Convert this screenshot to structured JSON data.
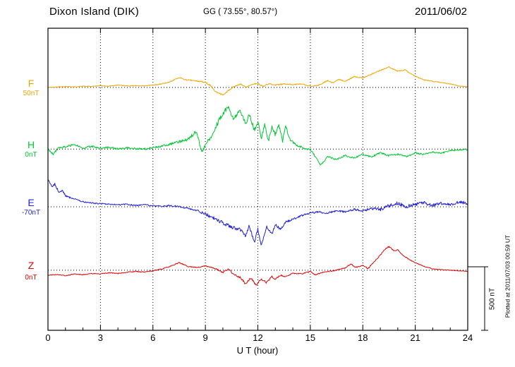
{
  "header": {
    "station": "Dixon Island (DIK)",
    "coords": "GG ( 73.55°,  80.57°)",
    "date": "2011/06/02"
  },
  "side": {
    "scalebar_label": "500 nT",
    "scalebar_nT": 500,
    "plotted_at": "Plotted at 2011/07/03 00:59 UT"
  },
  "chart_data": {
    "type": "line",
    "title": "Dixon Island (DIK) magnetogram 2011/06/02",
    "xlabel": "U T (hour)",
    "x_range": [
      0,
      24
    ],
    "x_ticks": [
      0,
      3,
      6,
      9,
      12,
      15,
      18,
      21,
      24
    ],
    "grid": "dotted vertical at 3h ticks, dotted horizontal baselines per trace",
    "legend_position": "left margin component labels",
    "scale_bar_nT": 500,
    "series": [
      {
        "name": "F",
        "color": "#f0a500",
        "baseline_label": "50nT",
        "baseline_frac": 0.196,
        "noise_profile": [
          [
            0,
            2
          ],
          [
            7,
            4
          ],
          [
            9,
            6
          ],
          [
            15,
            4
          ],
          [
            18,
            4
          ],
          [
            24,
            3
          ]
        ],
        "keypoints": [
          [
            0,
            0
          ],
          [
            0.5,
            3
          ],
          [
            1,
            6
          ],
          [
            1.5,
            4
          ],
          [
            2,
            10
          ],
          [
            2.5,
            8
          ],
          [
            3,
            14
          ],
          [
            3.5,
            10
          ],
          [
            4,
            18
          ],
          [
            4.5,
            12
          ],
          [
            5,
            14
          ],
          [
            5.5,
            12
          ],
          [
            6,
            18
          ],
          [
            6.5,
            28
          ],
          [
            7,
            45
          ],
          [
            7.5,
            78
          ],
          [
            7.8,
            62
          ],
          [
            8,
            58
          ],
          [
            8.5,
            52
          ],
          [
            9,
            40
          ],
          [
            9.3,
            15
          ],
          [
            9.6,
            -35
          ],
          [
            10,
            -60
          ],
          [
            10.3,
            -25
          ],
          [
            10.6,
            5
          ],
          [
            11,
            28
          ],
          [
            11.3,
            0
          ],
          [
            11.6,
            22
          ],
          [
            12,
            33
          ],
          [
            12.3,
            8
          ],
          [
            12.6,
            28
          ],
          [
            13,
            18
          ],
          [
            13.5,
            28
          ],
          [
            14,
            22
          ],
          [
            14.5,
            28
          ],
          [
            15,
            8
          ],
          [
            15.5,
            18
          ],
          [
            16,
            55
          ],
          [
            16.3,
            35
          ],
          [
            16.6,
            65
          ],
          [
            17,
            48
          ],
          [
            17.5,
            85
          ],
          [
            18,
            75
          ],
          [
            18.5,
            105
          ],
          [
            19,
            135
          ],
          [
            19.5,
            160
          ],
          [
            20,
            128
          ],
          [
            20.4,
            138
          ],
          [
            21,
            88
          ],
          [
            21.5,
            60
          ],
          [
            22,
            48
          ],
          [
            22.5,
            38
          ],
          [
            23,
            28
          ],
          [
            23.5,
            12
          ],
          [
            24,
            6
          ]
        ]
      },
      {
        "name": "H",
        "color": "#00c832",
        "baseline_label": "0nT",
        "baseline_frac": 0.4,
        "noise_profile": [
          [
            0,
            7
          ],
          [
            7,
            8
          ],
          [
            9,
            18
          ],
          [
            13,
            16
          ],
          [
            14.5,
            8
          ],
          [
            16,
            7
          ],
          [
            24,
            6
          ]
        ],
        "keypoints": [
          [
            0,
            0
          ],
          [
            0.3,
            -40
          ],
          [
            0.6,
            8
          ],
          [
            1,
            18
          ],
          [
            1.5,
            35
          ],
          [
            2,
            8
          ],
          [
            2.5,
            22
          ],
          [
            3,
            5
          ],
          [
            3.5,
            14
          ],
          [
            4,
            0
          ],
          [
            4.5,
            10
          ],
          [
            5,
            4
          ],
          [
            5.5,
            0
          ],
          [
            6,
            10
          ],
          [
            6.5,
            22
          ],
          [
            7,
            40
          ],
          [
            7.5,
            58
          ],
          [
            8,
            78
          ],
          [
            8.5,
            140
          ],
          [
            8.8,
            -25
          ],
          [
            9,
            28
          ],
          [
            9.3,
            90
          ],
          [
            9.6,
            180
          ],
          [
            10,
            280
          ],
          [
            10.3,
            330
          ],
          [
            10.6,
            245
          ],
          [
            11,
            300
          ],
          [
            11.3,
            195
          ],
          [
            11.5,
            275
          ],
          [
            11.8,
            145
          ],
          [
            12,
            215
          ],
          [
            12.2,
            85
          ],
          [
            12.4,
            195
          ],
          [
            12.6,
            60
          ],
          [
            12.8,
            175
          ],
          [
            13,
            115
          ],
          [
            13.2,
            195
          ],
          [
            13.4,
            60
          ],
          [
            13.6,
            185
          ],
          [
            13.8,
            80
          ],
          [
            14,
            55
          ],
          [
            14.3,
            25
          ],
          [
            14.6,
            8
          ],
          [
            15,
            -5
          ],
          [
            15.3,
            -60
          ],
          [
            15.6,
            -125
          ],
          [
            16,
            -60
          ],
          [
            16.5,
            -85
          ],
          [
            17,
            -50
          ],
          [
            17.5,
            -72
          ],
          [
            18,
            -40
          ],
          [
            18.5,
            -62
          ],
          [
            19,
            -30
          ],
          [
            19.5,
            -52
          ],
          [
            20,
            -40
          ],
          [
            20.5,
            -60
          ],
          [
            21,
            -30
          ],
          [
            21.5,
            -42
          ],
          [
            22,
            -22
          ],
          [
            22.5,
            -32
          ],
          [
            23,
            -12
          ],
          [
            23.5,
            -5
          ],
          [
            24,
            -2
          ]
        ]
      },
      {
        "name": "E",
        "color": "#2222dd",
        "baseline_label": "-70nT",
        "baseline_frac": 0.591,
        "noise_profile": [
          [
            0,
            10
          ],
          [
            2,
            5
          ],
          [
            8,
            6
          ],
          [
            10,
            16
          ],
          [
            14,
            8
          ],
          [
            18,
            8
          ],
          [
            19,
            14
          ],
          [
            24,
            12
          ]
        ],
        "keypoints": [
          [
            0,
            210
          ],
          [
            0.2,
            160
          ],
          [
            0.4,
            178
          ],
          [
            0.6,
            120
          ],
          [
            0.8,
            128
          ],
          [
            1,
            88
          ],
          [
            1.3,
            70
          ],
          [
            1.6,
            58
          ],
          [
            2,
            40
          ],
          [
            2.5,
            30
          ],
          [
            3,
            24
          ],
          [
            3.5,
            20
          ],
          [
            4,
            14
          ],
          [
            4.5,
            20
          ],
          [
            5,
            10
          ],
          [
            5.5,
            16
          ],
          [
            6,
            8
          ],
          [
            6.5,
            4
          ],
          [
            7,
            10
          ],
          [
            7.5,
            0
          ],
          [
            8,
            -12
          ],
          [
            8.5,
            -30
          ],
          [
            9,
            -58
          ],
          [
            9.5,
            -88
          ],
          [
            10,
            -128
          ],
          [
            10.5,
            -158
          ],
          [
            11,
            -178
          ],
          [
            11.3,
            -238
          ],
          [
            11.5,
            -150
          ],
          [
            11.8,
            -278
          ],
          [
            12,
            -178
          ],
          [
            12.2,
            -312
          ],
          [
            12.5,
            -158
          ],
          [
            12.8,
            -218
          ],
          [
            13,
            -140
          ],
          [
            13.3,
            -178
          ],
          [
            13.6,
            -120
          ],
          [
            14,
            -98
          ],
          [
            14.5,
            -70
          ],
          [
            15,
            -50
          ],
          [
            15.5,
            -40
          ],
          [
            16,
            -52
          ],
          [
            16.5,
            -30
          ],
          [
            17,
            -42
          ],
          [
            17.5,
            -20
          ],
          [
            18,
            -32
          ],
          [
            18.5,
            -12
          ],
          [
            19,
            -22
          ],
          [
            19.5,
            8
          ],
          [
            20,
            28
          ],
          [
            20.5,
            0
          ],
          [
            21,
            18
          ],
          [
            21.5,
            30
          ],
          [
            22,
            10
          ],
          [
            22.5,
            28
          ],
          [
            23,
            18
          ],
          [
            23.5,
            38
          ],
          [
            24,
            28
          ]
        ]
      },
      {
        "name": "Z",
        "color": "#e60000",
        "baseline_label": "0nT",
        "baseline_frac": 0.801,
        "noise_profile": [
          [
            0,
            2.5
          ],
          [
            9,
            4
          ],
          [
            11,
            8
          ],
          [
            13,
            7
          ],
          [
            14,
            4
          ],
          [
            17,
            4
          ],
          [
            19,
            5
          ],
          [
            21,
            3
          ],
          [
            24,
            2.5
          ]
        ],
        "keypoints": [
          [
            0,
            -40
          ],
          [
            0.5,
            -34
          ],
          [
            1,
            -44
          ],
          [
            1.5,
            -30
          ],
          [
            2,
            -36
          ],
          [
            2.5,
            -26
          ],
          [
            3,
            -30
          ],
          [
            3.5,
            -20
          ],
          [
            4,
            -26
          ],
          [
            4.5,
            -16
          ],
          [
            5,
            -10
          ],
          [
            5.5,
            -14
          ],
          [
            6,
            -5
          ],
          [
            6.5,
            10
          ],
          [
            7,
            30
          ],
          [
            7.5,
            60
          ],
          [
            8,
            30
          ],
          [
            8.5,
            20
          ],
          [
            9,
            34
          ],
          [
            9.5,
            18
          ],
          [
            10,
            -18
          ],
          [
            10.3,
            8
          ],
          [
            10.6,
            -28
          ],
          [
            11,
            -58
          ],
          [
            11.3,
            -108
          ],
          [
            11.6,
            -60
          ],
          [
            11.9,
            -118
          ],
          [
            12.2,
            -70
          ],
          [
            12.5,
            -98
          ],
          [
            12.8,
            -50
          ],
          [
            13,
            -70
          ],
          [
            13.3,
            -40
          ],
          [
            13.6,
            -52
          ],
          [
            14,
            -22
          ],
          [
            14.5,
            -30
          ],
          [
            15,
            -10
          ],
          [
            15.3,
            -38
          ],
          [
            15.6,
            -20
          ],
          [
            16,
            -10
          ],
          [
            16.5,
            0
          ],
          [
            17,
            18
          ],
          [
            17.3,
            50
          ],
          [
            17.6,
            22
          ],
          [
            18,
            40
          ],
          [
            18.3,
            12
          ],
          [
            18.6,
            58
          ],
          [
            19,
            118
          ],
          [
            19.3,
            168
          ],
          [
            19.5,
            185
          ],
          [
            19.8,
            150
          ],
          [
            20,
            160
          ],
          [
            20.3,
            118
          ],
          [
            20.6,
            88
          ],
          [
            21,
            58
          ],
          [
            21.5,
            30
          ],
          [
            22,
            10
          ],
          [
            22.5,
            4
          ],
          [
            23,
            0
          ],
          [
            23.5,
            -4
          ],
          [
            24,
            -10
          ]
        ]
      }
    ]
  }
}
